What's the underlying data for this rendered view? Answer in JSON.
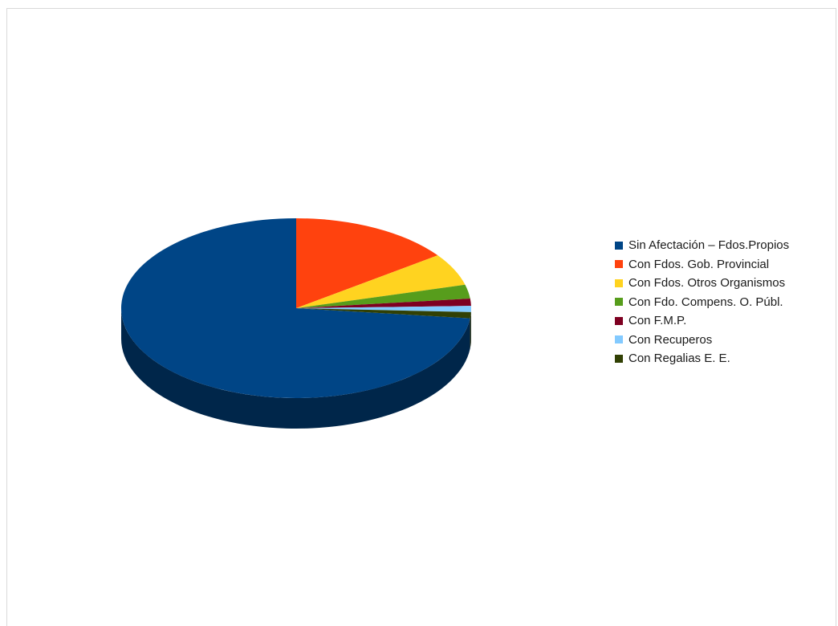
{
  "chart_data": {
    "type": "pie",
    "title": "",
    "legend_position": "right",
    "slices": [
      {
        "label": "Sin Afectación – Fdos.Propios",
        "value": 73.2,
        "color": "#004586"
      },
      {
        "label": "Con Fdos. Gob. Provincial",
        "value": 15.0,
        "color": "#ff420e"
      },
      {
        "label": "Con Fdos. Otros Organismos",
        "value": 5.8,
        "color": "#ffd320"
      },
      {
        "label": "Con Fdo. Compens. O. Públ.",
        "value": 2.5,
        "color": "#579d1c"
      },
      {
        "label": "Con F.M.P.",
        "value": 1.3,
        "color": "#7e0021"
      },
      {
        "label": "Con Recuperos",
        "value": 1.1,
        "color": "#83caff"
      },
      {
        "label": "Con Regalias E. E.",
        "value": 1.1,
        "color": "#314004"
      }
    ]
  }
}
